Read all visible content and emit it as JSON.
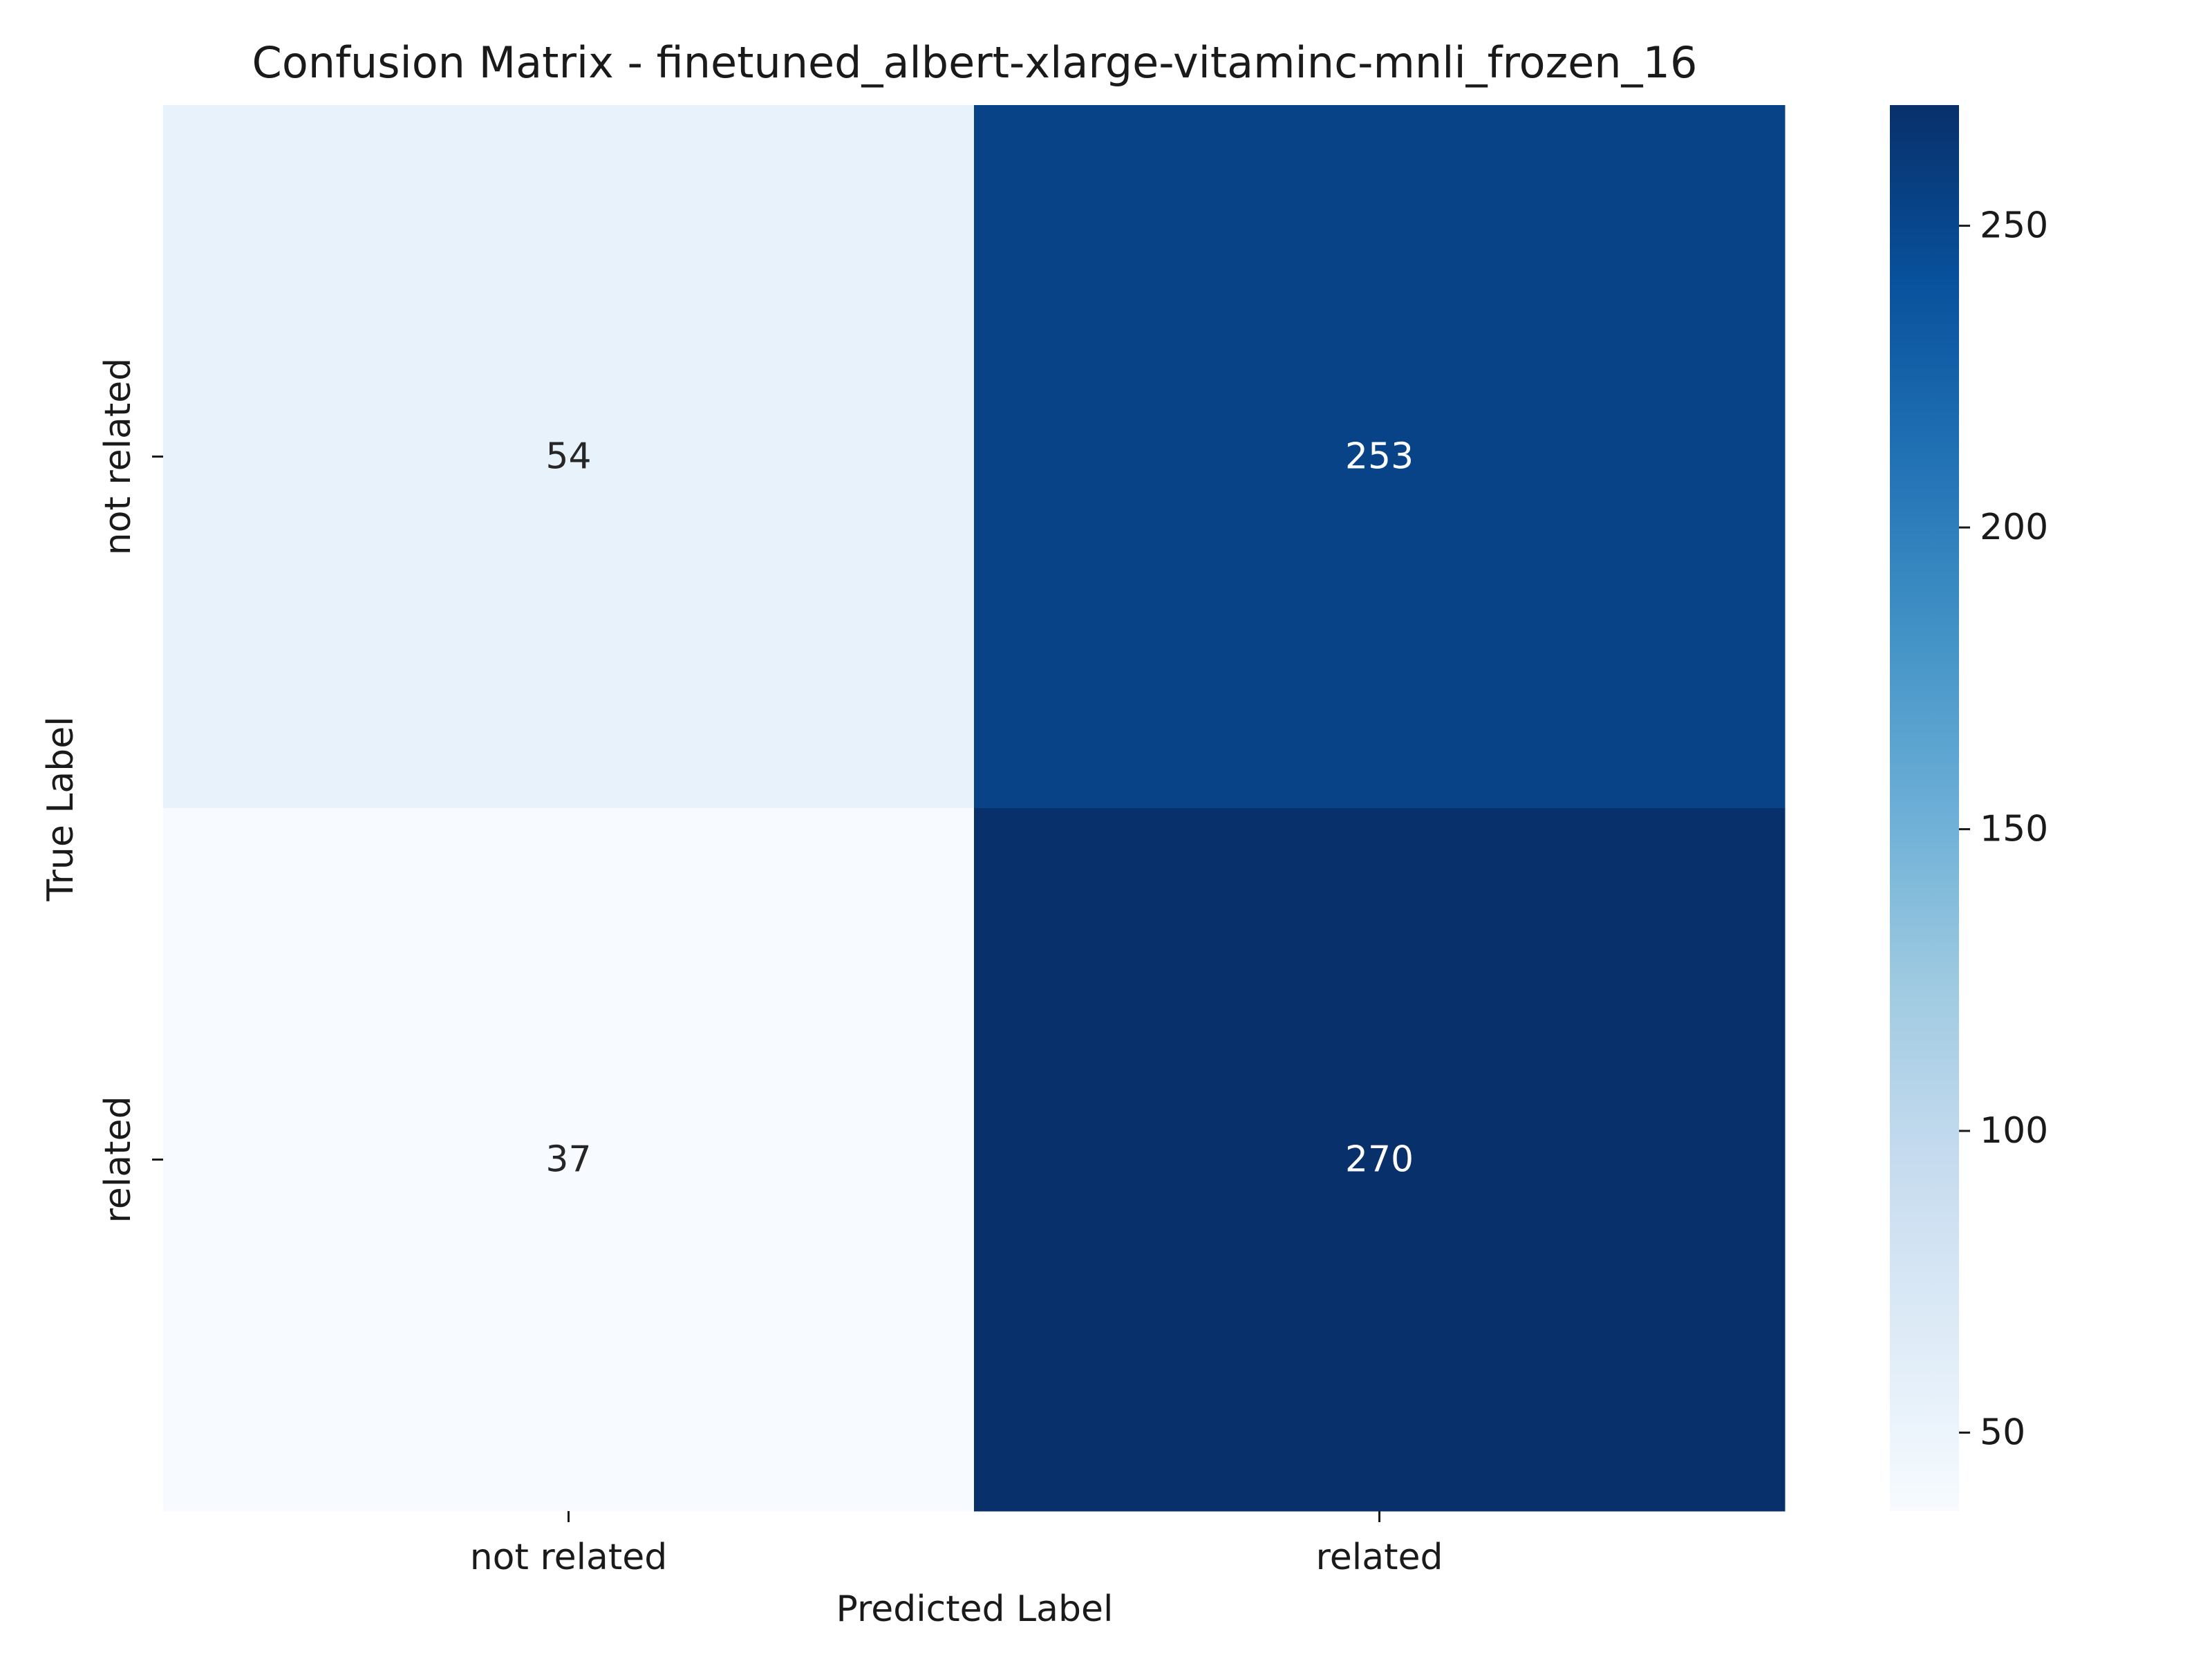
{
  "chart_data": {
    "type": "heatmap",
    "title": "Confusion Matrix - finetuned_albert-xlarge-vitaminc-mnli_frozen_16",
    "xlabel": "Predicted Label",
    "ylabel": "True Label",
    "x_categories": [
      "not related",
      "related"
    ],
    "y_categories": [
      "not related",
      "related"
    ],
    "values": [
      [
        54,
        253
      ],
      [
        37,
        270
      ]
    ],
    "colormap": "Blues",
    "colorbar": {
      "range": [
        37,
        270
      ],
      "ticks": [
        50,
        100,
        150,
        200,
        250
      ]
    },
    "grid": false
  }
}
